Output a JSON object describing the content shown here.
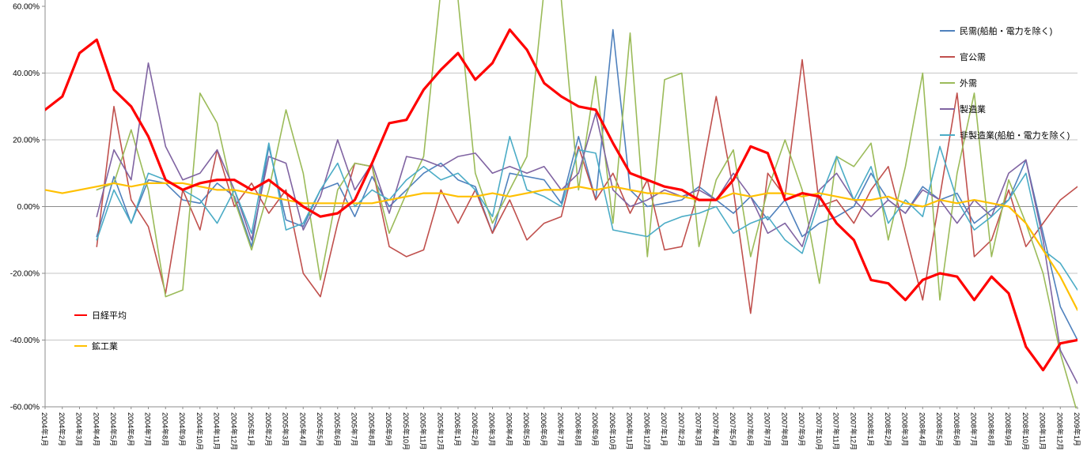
{
  "chart_data": {
    "type": "line",
    "title": "",
    "xlabel": "",
    "ylabel": "",
    "ylim": [
      -60,
      60
    ],
    "grid": true,
    "legend_position": "top-right",
    "y_axis": {
      "labels": [
        "60.00%",
        "40.00%",
        "20.00%",
        "0.00%",
        "-20.00%",
        "-40.00%",
        "-60.00%"
      ],
      "values": [
        60,
        40,
        20,
        0,
        -20,
        -40,
        -60
      ]
    },
    "categories": [
      "2004年1月",
      "2004年2月",
      "2004年3月",
      "2004年4月",
      "2004年5月",
      "2004年6月",
      "2004年7月",
      "2004年8月",
      "2004年9月",
      "2004年10月",
      "2004年11月",
      "2004年12月",
      "2005年1月",
      "2005年2月",
      "2005年3月",
      "2005年4月",
      "2005年5月",
      "2005年6月",
      "2005年7月",
      "2005年8月",
      "2005年9月",
      "2005年10月",
      "2005年11月",
      "2005年12月",
      "2006年1月",
      "2006年2月",
      "2006年3月",
      "2006年4月",
      "2006年5月",
      "2006年6月",
      "2006年7月",
      "2006年8月",
      "2006年9月",
      "2006年10月",
      "2006年11月",
      "2006年12月",
      "2007年1月",
      "2007年2月",
      "2007年3月",
      "2007年4月",
      "2007年5月",
      "2007年6月",
      "2007年7月",
      "2007年8月",
      "2007年9月",
      "2007年10月",
      "2007年11月",
      "2007年12月",
      "2008年1月",
      "2008年2月",
      "2008年3月",
      "2008年4月",
      "2008年5月",
      "2008年6月",
      "2008年7月",
      "2008年8月",
      "2008年9月",
      "2008年10月",
      "2008年11月",
      "2008年12月",
      "2009年1月"
    ],
    "series": [
      {
        "name": "民需(船舶・電力を除く)",
        "color": "#4F81BD",
        "width": 1.6,
        "values": [
          null,
          null,
          null,
          -9,
          9,
          -5,
          8,
          7,
          2,
          1,
          7,
          3,
          -12,
          18,
          -4,
          -6,
          5,
          7,
          -3,
          9,
          0,
          5,
          10,
          13,
          8,
          6,
          -8,
          10,
          9,
          8,
          1,
          21,
          2,
          53,
          5,
          0,
          1,
          2,
          6,
          2,
          -2,
          3,
          -4,
          2,
          -9,
          -5,
          -3,
          0,
          10,
          2,
          -2,
          6,
          2,
          4,
          -5,
          -1,
          2,
          14,
          -8,
          -30,
          -40
        ]
      },
      {
        "name": "官公需",
        "color": "#C0504D",
        "width": 1.6,
        "values": [
          null,
          null,
          null,
          -12,
          30,
          2,
          -6,
          -26,
          5,
          -7,
          17,
          0,
          7,
          -2,
          5,
          -20,
          -27,
          -5,
          13,
          12,
          -12,
          -15,
          -13,
          5,
          -5,
          5,
          -8,
          2,
          -10,
          -5,
          -3,
          18,
          2,
          10,
          -2,
          8,
          -13,
          -12,
          5,
          33,
          5,
          -32,
          10,
          3,
          44,
          0,
          2,
          -5,
          5,
          12,
          -8,
          -28,
          3,
          34,
          -15,
          -10,
          5,
          -12,
          -5,
          2,
          6
        ]
      },
      {
        "name": "外需",
        "color": "#9BBB59",
        "width": 1.6,
        "values": [
          null,
          null,
          null,
          5,
          7,
          23,
          5,
          -27,
          -25,
          34,
          25,
          2,
          -13,
          5,
          29,
          10,
          -22,
          5,
          13,
          12,
          -8,
          4,
          15,
          65,
          62,
          10,
          -5,
          5,
          15,
          65,
          62,
          5,
          39,
          -5,
          52,
          -15,
          38,
          40,
          -12,
          8,
          17,
          -15,
          5,
          20,
          5,
          -23,
          15,
          12,
          19,
          -10,
          12,
          40,
          -28,
          10,
          34,
          -15,
          8,
          -5,
          -20,
          -44,
          -62
        ]
      },
      {
        "name": "製造業",
        "color": "#8064A2",
        "width": 1.6,
        "values": [
          null,
          null,
          null,
          -3,
          17,
          8,
          43,
          18,
          8,
          10,
          17,
          5,
          -10,
          15,
          13,
          -7,
          3,
          20,
          5,
          13,
          -2,
          15,
          14,
          12,
          15,
          16,
          10,
          12,
          10,
          12,
          5,
          10,
          28,
          5,
          0,
          2,
          5,
          3,
          5,
          2,
          10,
          3,
          -8,
          -5,
          -12,
          5,
          10,
          2,
          -3,
          2,
          -2,
          5,
          2,
          -5,
          2,
          -3,
          10,
          14,
          -10,
          -43,
          -53
        ]
      },
      {
        "name": "非製造業(船舶・電力を除く)",
        "color": "#4BACC6",
        "width": 1.6,
        "values": [
          null,
          null,
          null,
          -10,
          5,
          -5,
          10,
          8,
          5,
          2,
          -5,
          5,
          -8,
          19,
          -7,
          -5,
          5,
          13,
          0,
          5,
          2,
          8,
          12,
          8,
          10,
          5,
          -3,
          21,
          5,
          3,
          0,
          17,
          16,
          -7,
          -8,
          -9,
          -5,
          -3,
          -2,
          0,
          -8,
          -5,
          -3,
          -10,
          -14,
          2,
          15,
          2,
          12,
          -5,
          2,
          -3,
          18,
          2,
          -7,
          -3,
          2,
          10,
          -13,
          -17,
          -25
        ]
      },
      {
        "name": "日経平均",
        "color": "#FF0000",
        "width": 3.2,
        "values": [
          29,
          33,
          46,
          50,
          35,
          30,
          21,
          8,
          5,
          7,
          8,
          8,
          5,
          8,
          4,
          0,
          -3,
          -2,
          2,
          13,
          25,
          26,
          35,
          41,
          46,
          38,
          43,
          53,
          47,
          37,
          33,
          30,
          29,
          19,
          10,
          8,
          6,
          5,
          2,
          2,
          8,
          18,
          16,
          2,
          4,
          3,
          -5,
          -10,
          -22,
          -23,
          -28,
          -22,
          -20,
          -21,
          -28,
          -21,
          -26,
          -42,
          -49,
          -41,
          -40
        ]
      },
      {
        "name": "鉱工業",
        "color": "#FFC000",
        "width": 2.2,
        "values": [
          5,
          4,
          5,
          6,
          7,
          6,
          7,
          7,
          7,
          6,
          5,
          5,
          4,
          3,
          2,
          1,
          1,
          1,
          1,
          1,
          2,
          3,
          4,
          4,
          3,
          3,
          4,
          3,
          4,
          5,
          5,
          6,
          5,
          6,
          5,
          4,
          4,
          3,
          2,
          2,
          4,
          3,
          4,
          4,
          3,
          4,
          3,
          2,
          2,
          3,
          1,
          0,
          2,
          1,
          2,
          1,
          0,
          -5,
          -13,
          -21,
          -31
        ]
      }
    ],
    "legend_entries": [
      "民需(船舶・電力を除く)",
      "官公需",
      "外需",
      "製造業",
      "非製造業(船舶・電力を除く)"
    ],
    "inplot_labels": [
      "日経平均",
      "鉱工業"
    ]
  }
}
